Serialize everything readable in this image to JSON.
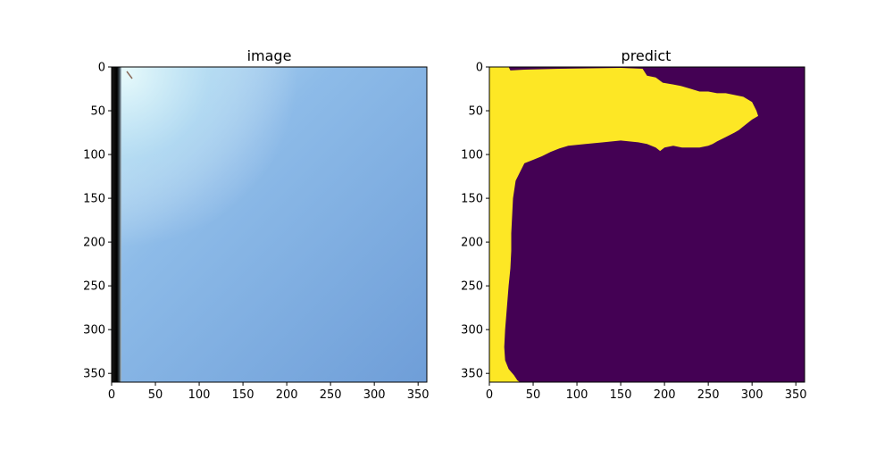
{
  "figure": {
    "background": "#ffffff"
  },
  "chart_data": [
    {
      "type": "heatmap",
      "title": "image",
      "xlabel": "",
      "ylabel": "",
      "xlim": [
        0,
        360
      ],
      "ylim": [
        360,
        0
      ],
      "xticks": [
        0,
        50,
        100,
        150,
        200,
        250,
        300,
        350
      ],
      "yticks": [
        0,
        50,
        100,
        150,
        200,
        250,
        300,
        350
      ],
      "content": "photograph of a light blue surface with a dark vertical strip along the left edge",
      "colors": {
        "surface": "#86b4e6",
        "edge_strip": "#101010",
        "highlight": "#d6f2fb"
      }
    },
    {
      "type": "heatmap",
      "title": "predict",
      "xlabel": "",
      "ylabel": "",
      "xlim": [
        0,
        360
      ],
      "ylim": [
        360,
        0
      ],
      "xticks": [
        0,
        50,
        100,
        150,
        200,
        250,
        300,
        350
      ],
      "yticks": [
        0,
        50,
        100,
        150,
        200,
        250,
        300,
        350
      ],
      "colormap": "viridis",
      "classes": [
        {
          "value": 0,
          "color": "#440154"
        },
        {
          "value": 1,
          "color": "#fde725"
        }
      ],
      "region_class1_outline": [
        [
          8,
          0
        ],
        [
          22,
          0
        ],
        [
          24,
          4
        ],
        [
          40,
          3
        ],
        [
          80,
          2
        ],
        [
          150,
          1
        ],
        [
          175,
          2
        ],
        [
          180,
          10
        ],
        [
          190,
          12
        ],
        [
          198,
          18
        ],
        [
          210,
          20
        ],
        [
          220,
          22
        ],
        [
          230,
          25
        ],
        [
          240,
          28
        ],
        [
          250,
          28
        ],
        [
          260,
          30
        ],
        [
          270,
          30
        ],
        [
          280,
          32
        ],
        [
          290,
          34
        ],
        [
          300,
          40
        ],
        [
          305,
          50
        ],
        [
          307,
          56
        ],
        [
          300,
          60
        ],
        [
          290,
          68
        ],
        [
          285,
          72
        ],
        [
          280,
          75
        ],
        [
          270,
          80
        ],
        [
          260,
          85
        ],
        [
          255,
          88
        ],
        [
          250,
          90
        ],
        [
          240,
          92
        ],
        [
          230,
          92
        ],
        [
          220,
          92
        ],
        [
          210,
          90
        ],
        [
          200,
          92
        ],
        [
          195,
          96
        ],
        [
          190,
          92
        ],
        [
          180,
          88
        ],
        [
          170,
          86
        ],
        [
          160,
          85
        ],
        [
          150,
          84
        ],
        [
          140,
          85
        ],
        [
          130,
          86
        ],
        [
          110,
          88
        ],
        [
          90,
          90
        ],
        [
          80,
          93
        ],
        [
          70,
          97
        ],
        [
          60,
          102
        ],
        [
          50,
          106
        ],
        [
          40,
          110
        ],
        [
          35,
          120
        ],
        [
          30,
          130
        ],
        [
          27,
          150
        ],
        [
          26,
          170
        ],
        [
          25,
          190
        ],
        [
          25,
          210
        ],
        [
          24,
          230
        ],
        [
          22,
          250
        ],
        [
          20,
          275
        ],
        [
          18,
          300
        ],
        [
          17,
          320
        ],
        [
          18,
          335
        ],
        [
          22,
          345
        ],
        [
          28,
          352
        ],
        [
          32,
          358
        ],
        [
          35,
          360
        ],
        [
          0,
          360
        ],
        [
          0,
          0
        ]
      ]
    }
  ]
}
